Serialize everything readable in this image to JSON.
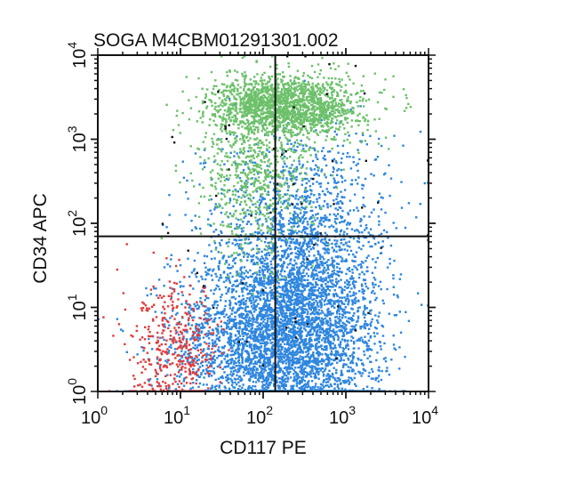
{
  "chart_data": {
    "type": "scatter",
    "title": "SOGA M4CBM01291301.002",
    "xlabel": "CD117 PE",
    "ylabel": "CD34 APC",
    "xscale": "log",
    "yscale": "log",
    "xlim": [
      1,
      10000
    ],
    "ylim": [
      1,
      10000
    ],
    "x_ticks": [
      {
        "base": "10",
        "exp": "0"
      },
      {
        "base": "10",
        "exp": "1"
      },
      {
        "base": "10",
        "exp": "2"
      },
      {
        "base": "10",
        "exp": "3"
      },
      {
        "base": "10",
        "exp": "4"
      }
    ],
    "y_ticks": [
      {
        "base": "10",
        "exp": "0"
      },
      {
        "base": "10",
        "exp": "1"
      },
      {
        "base": "10",
        "exp": "2"
      },
      {
        "base": "10",
        "exp": "3"
      },
      {
        "base": "10",
        "exp": "4"
      }
    ],
    "quadrant_gates": {
      "x": 140,
      "y": 70
    },
    "grid": false,
    "legend": "none",
    "populations": [
      {
        "color": "#2e86de",
        "x_center": 100,
        "x_spread": 0.55,
        "y_center": 4,
        "y_spread": 0.55,
        "count": 2600
      },
      {
        "color": "#2e86de",
        "x_center": 350,
        "x_spread": 0.45,
        "y_center": 6,
        "y_spread": 0.7,
        "count": 2400
      },
      {
        "color": "#2e86de",
        "x_center": 250,
        "x_spread": 0.55,
        "y_center": 120,
        "y_spread": 0.55,
        "count": 900
      },
      {
        "color": "#6cc06a",
        "x_center": 200,
        "x_spread": 0.45,
        "y_center": 2500,
        "y_spread": 0.18,
        "count": 1700
      },
      {
        "color": "#6cc06a",
        "x_center": 80,
        "x_spread": 0.35,
        "y_center": 400,
        "y_spread": 0.5,
        "count": 700
      },
      {
        "color": "#e03c3c",
        "x_center": 9,
        "x_spread": 0.28,
        "y_center": 3,
        "y_spread": 0.4,
        "count": 420
      },
      {
        "color": "#111111",
        "x_center": 200,
        "x_spread": 0.7,
        "y_center": 200,
        "y_spread": 1.0,
        "count": 60
      }
    ]
  }
}
